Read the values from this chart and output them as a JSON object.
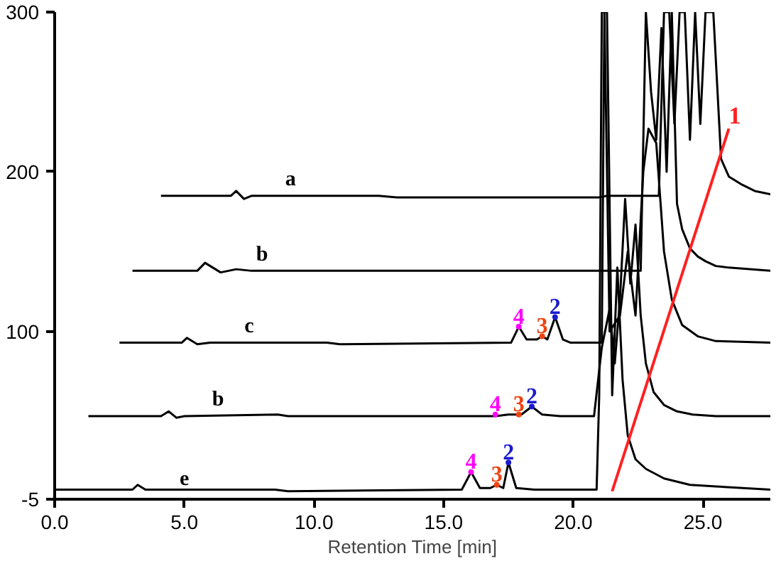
{
  "chart_data": {
    "type": "line",
    "xlabel": "Retention Time [min]",
    "xlim": [
      0,
      27.6
    ],
    "ylim": [
      -5,
      300
    ],
    "xticks": [
      {
        "value": 0,
        "label": "0.0"
      },
      {
        "value": 5,
        "label": "5.0"
      },
      {
        "value": 10,
        "label": "10.0"
      },
      {
        "value": 15,
        "label": "15.0"
      },
      {
        "value": 20,
        "label": "20.0"
      },
      {
        "value": 25,
        "label": "25.0"
      }
    ],
    "yticks": [
      -5,
      100,
      200,
      300
    ],
    "grid": false,
    "marker": "none",
    "line_style": "solid",
    "series": [
      {
        "name": "a",
        "color": "#000000",
        "x": [
          4.1,
          6.8,
          7.0,
          7.3,
          7.6,
          12.5,
          13.2,
          21.0,
          21.3,
          23.3,
          23.5,
          23.7,
          23.9,
          24.1,
          24.3,
          24.5,
          24.7,
          24.9,
          25.1,
          25.4,
          25.7,
          26.0,
          26.5,
          27.0,
          27.6
        ],
        "values": [
          185,
          185,
          188,
          183,
          185,
          185,
          184,
          184,
          185,
          185,
          300,
          300,
          230,
          300,
          300,
          220,
          300,
          230,
          300,
          300,
          208,
          197,
          192,
          188,
          186
        ]
      },
      {
        "name": "b",
        "color": "#000000",
        "x": [
          3.0,
          5.5,
          5.8,
          6.1,
          6.4,
          7.0,
          7.6,
          20.0,
          22.6,
          22.8,
          23.0,
          23.2,
          23.4,
          23.6,
          23.8,
          24.0,
          24.2,
          24.5,
          24.8,
          25.1,
          25.5,
          26.0,
          27.6
        ],
        "values": [
          138,
          138,
          143,
          140,
          137,
          139,
          138,
          138,
          138,
          300,
          250,
          220,
          290,
          200,
          300,
          180,
          164,
          152,
          147,
          144,
          141,
          140,
          138
        ]
      },
      {
        "name": "c",
        "color": "#000000",
        "x": [
          2.5,
          4.9,
          5.1,
          5.5,
          6.0,
          10.5,
          11.0,
          17.6,
          17.9,
          18.2,
          18.6,
          18.8,
          19.0,
          19.3,
          19.6,
          19.9,
          20.8,
          21.1,
          21.2,
          21.4,
          21.8,
          22.1,
          22.4,
          22.7,
          22.9,
          23.2,
          23.5,
          23.8,
          24.2,
          24.8,
          25.5,
          27.6
        ],
        "values": [
          93,
          93,
          96,
          92,
          93,
          93,
          92,
          93,
          103,
          95,
          95,
          97,
          95,
          109,
          95,
          93,
          93,
          93,
          300,
          100,
          110,
          150,
          110,
          200,
          227,
          218,
          150,
          120,
          104,
          97,
          94,
          93
        ]
      },
      {
        "name": "b",
        "color": "#000000",
        "x": [
          1.3,
          4.1,
          4.4,
          4.7,
          5.0,
          8.6,
          9.0,
          17.0,
          17.5,
          18.0,
          18.4,
          18.8,
          19.5,
          20.8,
          21.1,
          21.4,
          21.6,
          21.8,
          22.0,
          22.2,
          22.4,
          22.6,
          22.8,
          23.1,
          23.5,
          24.0,
          24.6,
          25.5,
          27.6
        ],
        "values": [
          47,
          47,
          50,
          46,
          47,
          48,
          47,
          47,
          48,
          48,
          53,
          48,
          47,
          47,
          90,
          114,
          80,
          120,
          183,
          130,
          167,
          110,
          80,
          62,
          54,
          50,
          48,
          47,
          47
        ]
      },
      {
        "name": "e",
        "color": "#000000",
        "x": [
          0,
          3.0,
          3.2,
          3.5,
          8.5,
          9.0,
          15.7,
          16.06,
          16.4,
          16.8,
          17.05,
          17.3,
          17.5,
          17.8,
          18.5,
          20.9,
          21.0,
          21.1,
          21.3,
          21.5,
          21.7,
          21.9,
          22.1,
          22.4,
          22.8,
          23.5,
          24.5,
          25.5,
          27.6
        ],
        "values": [
          1,
          1,
          4,
          1,
          1,
          0,
          1,
          12,
          2,
          2,
          4,
          2,
          18,
          2,
          1,
          1,
          60,
          300,
          300,
          60,
          140,
          70,
          35,
          20,
          14,
          8,
          4,
          3,
          1
        ]
      },
      {
        "name": "4",
        "type": "scatter",
        "color": "#ff00ff",
        "x": [
          17.9,
          17.0,
          16.06
        ],
        "values": [
          103,
          48,
          12
        ]
      },
      {
        "name": "3",
        "type": "scatter",
        "color": "#ee4411",
        "x": [
          18.8,
          17.9,
          17.05
        ],
        "values": [
          97,
          48,
          4
        ]
      },
      {
        "name": "2",
        "type": "scatter",
        "color": "#1a1acc",
        "x": [
          19.3,
          18.4,
          17.5
        ],
        "values": [
          109,
          53,
          18
        ]
      },
      {
        "color": "#ff2020",
        "x": [
          21.5,
          26.0
        ],
        "values": [
          0,
          227
        ]
      }
    ],
    "annotations": [
      "1"
    ]
  }
}
